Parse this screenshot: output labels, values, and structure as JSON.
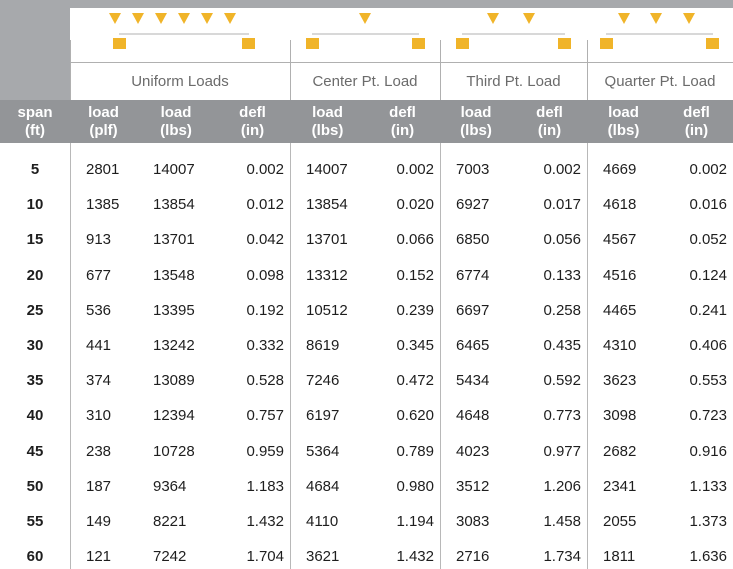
{
  "table": {
    "groups": [
      "Uniform Loads",
      "Center Pt. Load",
      "Third Pt. Load",
      "Quarter Pt. Load"
    ],
    "columns": [
      "span (ft)",
      "load (plf)",
      "load (lbs)",
      "defl (in)",
      "load (lbs)",
      "defl (in)",
      "load (lbs)",
      "defl (in)",
      "load (lbs)",
      "defl (in)"
    ],
    "rows": [
      [
        "5",
        "2801",
        "14007",
        "0.002",
        "14007",
        "0.002",
        "7003",
        "0.002",
        "4669",
        "0.002"
      ],
      [
        "10",
        "1385",
        "13854",
        "0.012",
        "13854",
        "0.020",
        "6927",
        "0.017",
        "4618",
        "0.016"
      ],
      [
        "15",
        "913",
        "13701",
        "0.042",
        "13701",
        "0.066",
        "6850",
        "0.056",
        "4567",
        "0.052"
      ],
      [
        "20",
        "677",
        "13548",
        "0.098",
        "13312",
        "0.152",
        "6774",
        "0.133",
        "4516",
        "0.124"
      ],
      [
        "25",
        "536",
        "13395",
        "0.192",
        "10512",
        "0.239",
        "6697",
        "0.258",
        "4465",
        "0.241"
      ],
      [
        "30",
        "441",
        "13242",
        "0.332",
        "8619",
        "0.345",
        "6465",
        "0.435",
        "4310",
        "0.406"
      ],
      [
        "35",
        "374",
        "13089",
        "0.528",
        "7246",
        "0.472",
        "5434",
        "0.592",
        "3623",
        "0.553"
      ],
      [
        "40",
        "310",
        "12394",
        "0.757",
        "6197",
        "0.620",
        "4648",
        "0.773",
        "3098",
        "0.723"
      ],
      [
        "45",
        "238",
        "10728",
        "0.959",
        "5364",
        "0.789",
        "4023",
        "0.977",
        "2682",
        "0.916"
      ],
      [
        "50",
        "187",
        "9364",
        "1.183",
        "4684",
        "0.980",
        "3512",
        "1.206",
        "2341",
        "1.133"
      ],
      [
        "55",
        "149",
        "8221",
        "1.432",
        "4110",
        "1.194",
        "3083",
        "1.458",
        "2055",
        "1.373"
      ],
      [
        "60",
        "121",
        "7242",
        "1.704",
        "3621",
        "1.432",
        "2716",
        "1.734",
        "1811",
        "1.636"
      ]
    ]
  }
}
